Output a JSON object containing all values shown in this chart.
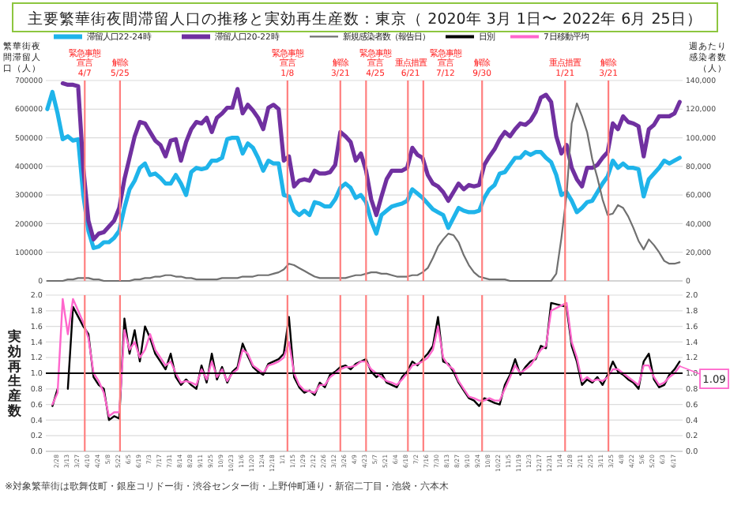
{
  "chart_data": [
    {
      "type": "line",
      "title": "主要繁華街夜間滞留人口の推移と実効再生産数：東京（ 2020年 3月 1日〜 2022年 6月 25日）",
      "ylabel": "繁華街夜間滞留人口（人）",
      "y2label": "週あたり感染者数（人）",
      "legend": "top",
      "grid": "y",
      "tick_labels": "y",
      "xlim": [
        "2020-02-14",
        "2022-06-30"
      ],
      "x": [
        "2020-02-16",
        "2020-02-23",
        "2020-03-01",
        "2020-03-08",
        "2020-03-15",
        "2020-03-22",
        "2020-03-29",
        "2020-04-05",
        "2020-04-12",
        "2020-04-19",
        "2020-04-26",
        "2020-05-03",
        "2020-05-10",
        "2020-05-17",
        "2020-05-24",
        "2020-05-31",
        "2020-06-07",
        "2020-06-14",
        "2020-06-21",
        "2020-06-28",
        "2020-07-05",
        "2020-07-12",
        "2020-07-19",
        "2020-07-26",
        "2020-08-02",
        "2020-08-09",
        "2020-08-16",
        "2020-08-23",
        "2020-08-30",
        "2020-09-06",
        "2020-09-13",
        "2020-09-20",
        "2020-09-27",
        "2020-10-04",
        "2020-10-11",
        "2020-10-18",
        "2020-10-25",
        "2020-11-01",
        "2020-11-08",
        "2020-11-15",
        "2020-11-22",
        "2020-11-29",
        "2020-12-06",
        "2020-12-13",
        "2020-12-20",
        "2020-12-27",
        "2021-01-03",
        "2021-01-10",
        "2021-01-17",
        "2021-01-24",
        "2021-01-31",
        "2021-02-07",
        "2021-02-14",
        "2021-02-21",
        "2021-02-28",
        "2021-03-07",
        "2021-03-14",
        "2021-03-21",
        "2021-03-28",
        "2021-04-04",
        "2021-04-11",
        "2021-04-18",
        "2021-04-25",
        "2021-05-02",
        "2021-05-09",
        "2021-05-16",
        "2021-05-23",
        "2021-05-30",
        "2021-06-06",
        "2021-06-13",
        "2021-06-20",
        "2021-06-27",
        "2021-07-04",
        "2021-07-11",
        "2021-07-18",
        "2021-07-25",
        "2021-08-01",
        "2021-08-08",
        "2021-08-15",
        "2021-08-22",
        "2021-08-29",
        "2021-09-05",
        "2021-09-12",
        "2021-09-19",
        "2021-09-26",
        "2021-10-03",
        "2021-10-10",
        "2021-10-17",
        "2021-10-24",
        "2021-10-31",
        "2021-11-07",
        "2021-11-14",
        "2021-11-21",
        "2021-11-28",
        "2021-12-05",
        "2021-12-12",
        "2021-12-19",
        "2021-12-26",
        "2022-01-02",
        "2022-01-09",
        "2022-01-16",
        "2022-01-23",
        "2022-01-30",
        "2022-02-06",
        "2022-02-13",
        "2022-02-20",
        "2022-02-27",
        "2022-03-06",
        "2022-03-13",
        "2022-03-20",
        "2022-03-27",
        "2022-04-03",
        "2022-04-10",
        "2022-04-17",
        "2022-04-24",
        "2022-05-01",
        "2022-05-08",
        "2022-05-15",
        "2022-05-22",
        "2022-05-29",
        "2022-06-05",
        "2022-06-12",
        "2022-06-19",
        "2022-06-26"
      ],
      "ylim": [
        0,
        700000
      ],
      "yticks": [
        0,
        100000,
        200000,
        300000,
        400000,
        500000,
        600000,
        700000
      ],
      "y2lim": [
        0,
        140000
      ],
      "y2ticks": [
        {
          "value": 0,
          "label": "0"
        },
        {
          "value": 20000,
          "label": "20,000"
        },
        {
          "value": 40000,
          "label": "40,000"
        },
        {
          "value": 60000,
          "label": "60,000"
        },
        {
          "value": 80000,
          "label": "80,000"
        },
        {
          "value": 100000,
          "label": "100,000"
        },
        {
          "value": 120000,
          "label": "120,000"
        },
        {
          "value": 140000,
          "label": "140,000"
        }
      ],
      "series": [
        {
          "name": "滞留人口22-24時",
          "color": "#1fb4ea",
          "values": [
            600000,
            660000,
            585000,
            495000,
            505000,
            490000,
            495000,
            300000,
            175000,
            115000,
            120000,
            135000,
            135000,
            150000,
            175000,
            255000,
            320000,
            350000,
            395000,
            410000,
            370000,
            375000,
            360000,
            340000,
            340000,
            370000,
            340000,
            300000,
            380000,
            395000,
            390000,
            395000,
            420000,
            420000,
            430000,
            495000,
            500000,
            500000,
            445000,
            480000,
            465000,
            430000,
            385000,
            420000,
            410000,
            410000,
            300000,
            295000,
            245000,
            230000,
            245000,
            230000,
            275000,
            270000,
            260000,
            260000,
            285000,
            325000,
            340000,
            325000,
            290000,
            300000,
            275000,
            210000,
            165000,
            230000,
            245000,
            260000,
            265000,
            270000,
            280000,
            320000,
            305000,
            290000,
            270000,
            250000,
            240000,
            230000,
            185000,
            220000,
            255000,
            245000,
            240000,
            240000,
            245000,
            290000,
            320000,
            335000,
            375000,
            380000,
            405000,
            430000,
            430000,
            450000,
            440000,
            450000,
            450000,
            430000,
            415000,
            370000,
            300000,
            310000,
            280000,
            240000,
            255000,
            275000,
            280000,
            310000,
            340000,
            365000,
            420000,
            395000,
            410000,
            395000,
            395000,
            390000,
            295000,
            355000,
            375000,
            395000,
            420000,
            410000,
            420000,
            430000
          ]
        },
        {
          "name": "滞留人口20-22時",
          "color": "#7030a0",
          "values": [
            null,
            null,
            null,
            690000,
            685000,
            685000,
            680000,
            395000,
            210000,
            145000,
            165000,
            170000,
            190000,
            210000,
            255000,
            355000,
            430000,
            505000,
            555000,
            550000,
            520000,
            490000,
            475000,
            435000,
            490000,
            495000,
            420000,
            485000,
            530000,
            555000,
            550000,
            570000,
            520000,
            570000,
            585000,
            605000,
            605000,
            670000,
            585000,
            615000,
            595000,
            570000,
            530000,
            605000,
            615000,
            600000,
            420000,
            435000,
            330000,
            350000,
            355000,
            350000,
            385000,
            375000,
            375000,
            380000,
            405000,
            520000,
            505000,
            485000,
            420000,
            445000,
            385000,
            285000,
            230000,
            295000,
            355000,
            385000,
            385000,
            385000,
            395000,
            465000,
            440000,
            430000,
            370000,
            340000,
            330000,
            310000,
            280000,
            310000,
            340000,
            320000,
            335000,
            330000,
            335000,
            405000,
            435000,
            460000,
            495000,
            520000,
            505000,
            530000,
            550000,
            545000,
            560000,
            590000,
            640000,
            650000,
            625000,
            505000,
            445000,
            475000,
            395000,
            355000,
            330000,
            395000,
            395000,
            405000,
            430000,
            450000,
            550000,
            530000,
            575000,
            555000,
            550000,
            540000,
            435000,
            530000,
            545000,
            575000,
            575000,
            575000,
            585000,
            625000
          ]
        },
        {
          "name": "新規感染者数（報告日）",
          "color": "#707070",
          "axis": "y2",
          "values": [
            0,
            0,
            0,
            0,
            1000,
            1000,
            2000,
            2000,
            2000,
            1000,
            1000,
            0,
            0,
            0,
            0,
            0,
            0,
            1000,
            1000,
            2000,
            2000,
            3000,
            3000,
            4000,
            4000,
            3000,
            3000,
            2000,
            2000,
            1000,
            1000,
            1000,
            1000,
            1000,
            2000,
            2000,
            2000,
            2000,
            3000,
            3000,
            3000,
            4000,
            4000,
            4000,
            5000,
            6000,
            8000,
            12000,
            11000,
            9000,
            7000,
            5000,
            3000,
            2000,
            2000,
            2000,
            2000,
            2000,
            2000,
            3000,
            4000,
            4000,
            5000,
            6000,
            6000,
            5000,
            5000,
            4000,
            3000,
            3000,
            3000,
            4000,
            4000,
            6000,
            9000,
            16000,
            24000,
            29000,
            33000,
            32000,
            27000,
            18000,
            11000,
            6000,
            3000,
            2000,
            1000,
            1000,
            1000,
            1000,
            0,
            0,
            0,
            0,
            0,
            0,
            0,
            0,
            0,
            5000,
            30000,
            60000,
            110000,
            124000,
            115000,
            104000,
            85000,
            72000,
            57000,
            46000,
            47000,
            53000,
            51000,
            45000,
            37000,
            28000,
            22000,
            29000,
            25000,
            20000,
            14000,
            12000,
            12000,
            13000
          ]
        }
      ],
      "ref_lines": [
        {
          "axis": "x",
          "value": "2020-04-07",
          "label": "緊急事態宣言\n4/7",
          "color": "#ff7f7f"
        },
        {
          "axis": "x",
          "value": "2020-05-25",
          "label": "解除\n5/25",
          "color": "#ff7f7f"
        },
        {
          "axis": "x",
          "value": "2021-01-08",
          "label": "緊急事態宣言\n1/8",
          "color": "#ff7f7f"
        },
        {
          "axis": "x",
          "value": "2021-03-21",
          "label": "解除\n3/21",
          "color": "#ff7f7f"
        },
        {
          "axis": "x",
          "value": "2021-04-25",
          "label": "緊急事態宣言\n4/25",
          "color": "#ff7f7f"
        },
        {
          "axis": "x",
          "value": "2021-06-21",
          "label": "重点措置\n6/21",
          "color": "#ff7f7f"
        },
        {
          "axis": "x",
          "value": "2021-07-12",
          "label": "緊急事態宣言\n7/12",
          "color": "#ff7f7f"
        },
        {
          "axis": "x",
          "value": "2021-09-30",
          "label": "解除\n9/30",
          "color": "#ff7f7f"
        },
        {
          "axis": "x",
          "value": "2022-01-21",
          "label": "重点措置\n1/21",
          "color": "#ff7f7f"
        },
        {
          "axis": "x",
          "value": "2022-03-21",
          "label": "解除\n3/21",
          "color": "#ff7f7f"
        }
      ]
    },
    {
      "type": "line",
      "ylabel": "実効再生産数",
      "legend": "top",
      "grid": "y",
      "xlim": [
        "2020-02-14",
        "2022-06-30"
      ],
      "x": [
        "2020-02-23",
        "2020-03-01",
        "2020-03-08",
        "2020-03-15",
        "2020-03-22",
        "2020-04-05",
        "2020-04-12",
        "2020-04-19",
        "2020-04-26",
        "2020-05-03",
        "2020-05-10",
        "2020-05-17",
        "2020-05-24",
        "2020-05-31",
        "2020-06-07",
        "2020-06-14",
        "2020-06-21",
        "2020-06-28",
        "2020-07-05",
        "2020-07-12",
        "2020-07-19",
        "2020-07-26",
        "2020-08-02",
        "2020-08-09",
        "2020-08-16",
        "2020-08-23",
        "2020-08-30",
        "2020-09-06",
        "2020-09-13",
        "2020-09-20",
        "2020-09-27",
        "2020-10-04",
        "2020-10-11",
        "2020-10-18",
        "2020-10-25",
        "2020-11-01",
        "2020-11-08",
        "2020-11-15",
        "2020-11-22",
        "2020-11-29",
        "2020-12-06",
        "2020-12-13",
        "2020-12-20",
        "2020-12-27",
        "2021-01-03",
        "2021-01-10",
        "2021-01-17",
        "2021-01-24",
        "2021-01-31",
        "2021-02-07",
        "2021-02-14",
        "2021-02-21",
        "2021-02-28",
        "2021-03-07",
        "2021-03-14",
        "2021-03-21",
        "2021-03-28",
        "2021-04-04",
        "2021-04-11",
        "2021-04-18",
        "2021-04-25",
        "2021-05-02",
        "2021-05-09",
        "2021-05-16",
        "2021-05-23",
        "2021-05-30",
        "2021-06-06",
        "2021-06-13",
        "2021-06-20",
        "2021-06-27",
        "2021-07-04",
        "2021-07-11",
        "2021-07-18",
        "2021-07-25",
        "2021-08-01",
        "2021-08-08",
        "2021-08-15",
        "2021-08-22",
        "2021-08-29",
        "2021-09-05",
        "2021-09-12",
        "2021-09-19",
        "2021-09-26",
        "2021-10-03",
        "2021-10-10",
        "2021-10-17",
        "2021-10-24",
        "2021-10-31",
        "2021-11-07",
        "2021-11-14",
        "2021-11-21",
        "2021-11-28",
        "2021-12-05",
        "2021-12-12",
        "2021-12-19",
        "2021-12-26",
        "2022-01-02",
        "2022-01-23",
        "2022-01-30",
        "2022-02-06",
        "2022-02-13",
        "2022-02-20",
        "2022-02-27",
        "2022-03-06",
        "2022-03-13",
        "2022-03-20",
        "2022-03-27",
        "2022-04-03",
        "2022-04-10",
        "2022-04-17",
        "2022-04-24",
        "2022-05-01",
        "2022-05-08",
        "2022-05-15",
        "2022-05-22",
        "2022-05-29",
        "2022-06-05",
        "2022-06-12",
        "2022-06-19",
        "2022-06-26"
      ],
      "xticks": [
        {
          "value": "2020-02-28",
          "label": "2/28"
        },
        {
          "value": "2020-03-13",
          "label": "3/13"
        },
        {
          "value": "2020-03-27",
          "label": "3/27"
        },
        {
          "value": "2020-04-10",
          "label": "4/10"
        },
        {
          "value": "2020-04-24",
          "label": "4/24"
        },
        {
          "value": "2020-05-08",
          "label": "5/8"
        },
        {
          "value": "2020-05-22",
          "label": "5/22"
        },
        {
          "value": "2020-06-05",
          "label": "6/5"
        },
        {
          "value": "2020-06-19",
          "label": "6/19"
        },
        {
          "value": "2020-07-03",
          "label": "7/3"
        },
        {
          "value": "2020-07-17",
          "label": "7/17"
        },
        {
          "value": "2020-07-31",
          "label": "7/31"
        },
        {
          "value": "2020-08-14",
          "label": "8/14"
        },
        {
          "value": "2020-08-28",
          "label": "8/28"
        },
        {
          "value": "2020-09-11",
          "label": "9/11"
        },
        {
          "value": "2020-09-25",
          "label": "9/25"
        },
        {
          "value": "2020-10-09",
          "label": "10/9"
        },
        {
          "value": "2020-10-23",
          "label": "10/23"
        },
        {
          "value": "2020-11-06",
          "label": "11/6"
        },
        {
          "value": "2020-11-20",
          "label": "11/20"
        },
        {
          "value": "2020-12-04",
          "label": "12/4"
        },
        {
          "value": "2020-12-18",
          "label": "12/18"
        },
        {
          "value": "2021-01-01",
          "label": "1/1"
        },
        {
          "value": "2021-01-15",
          "label": "1/15"
        },
        {
          "value": "2021-01-29",
          "label": "1/29"
        },
        {
          "value": "2021-02-12",
          "label": "2/12"
        },
        {
          "value": "2021-02-26",
          "label": "2/26"
        },
        {
          "value": "2021-03-12",
          "label": "3/12"
        },
        {
          "value": "2021-03-26",
          "label": "3/26"
        },
        {
          "value": "2021-04-09",
          "label": "4/9"
        },
        {
          "value": "2021-04-23",
          "label": "4/23"
        },
        {
          "value": "2021-05-07",
          "label": "5/7"
        },
        {
          "value": "2021-05-21",
          "label": "5/21"
        },
        {
          "value": "2021-06-04",
          "label": "6/4"
        },
        {
          "value": "2021-06-18",
          "label": "6/18"
        },
        {
          "value": "2021-07-02",
          "label": "7/2"
        },
        {
          "value": "2021-07-16",
          "label": "7/16"
        },
        {
          "value": "2021-07-30",
          "label": "7/30"
        },
        {
          "value": "2021-08-13",
          "label": "8/13"
        },
        {
          "value": "2021-08-27",
          "label": "8/27"
        },
        {
          "value": "2021-09-10",
          "label": "9/10"
        },
        {
          "value": "2021-09-24",
          "label": "9/24"
        },
        {
          "value": "2021-10-08",
          "label": "10/8"
        },
        {
          "value": "2021-10-22",
          "label": "10/22"
        },
        {
          "value": "2021-11-05",
          "label": "11/5"
        },
        {
          "value": "2021-11-19",
          "label": "11/19"
        },
        {
          "value": "2021-12-03",
          "label": "12/3"
        },
        {
          "value": "2021-12-17",
          "label": "12/17"
        },
        {
          "value": "2021-12-31",
          "label": "12/31"
        },
        {
          "value": "2022-01-14",
          "label": "1/14"
        },
        {
          "value": "2022-01-28",
          "label": "1/28"
        },
        {
          "value": "2022-02-11",
          "label": "2/11"
        },
        {
          "value": "2022-02-25",
          "label": "2/25"
        },
        {
          "value": "2022-03-11",
          "label": "3/11"
        },
        {
          "value": "2022-03-25",
          "label": "3/25"
        },
        {
          "value": "2022-04-08",
          "label": "4/8"
        },
        {
          "value": "2022-04-22",
          "label": "4/22"
        },
        {
          "value": "2022-05-06",
          "label": "5/6"
        },
        {
          "value": "2022-05-20",
          "label": "5/20"
        },
        {
          "value": "2022-06-03",
          "label": "6/3"
        },
        {
          "value": "2022-06-17",
          "label": "6/17"
        }
      ],
      "ylim": [
        0,
        2
      ],
      "yticks": [
        {
          "value": 0,
          "label": "0.0"
        },
        {
          "value": 0.2,
          "label": "0.2"
        },
        {
          "value": 0.4,
          "label": "0.4"
        },
        {
          "value": 0.6,
          "label": "0.6"
        },
        {
          "value": 0.8,
          "label": "0.8"
        },
        {
          "value": 1,
          "label": "1.0"
        },
        {
          "value": 1.2,
          "label": "1.2"
        },
        {
          "value": 1.4,
          "label": "1.4"
        },
        {
          "value": 1.6,
          "label": "1.6"
        },
        {
          "value": 1.8,
          "label": "1.8"
        },
        {
          "value": 2,
          "label": "2.0"
        }
      ],
      "y2lim": [
        0,
        2
      ],
      "y2ticks": [
        {
          "value": 0,
          "label": "0.0"
        },
        {
          "value": 0.2,
          "label": "0.2"
        },
        {
          "value": 0.4,
          "label": "0.4"
        },
        {
          "value": 0.6,
          "label": "0.6"
        },
        {
          "value": 0.8,
          "label": "0.8"
        },
        {
          "value": 1,
          "label": "1.0"
        },
        {
          "value": 1.2,
          "label": "1.2"
        },
        {
          "value": 1.4,
          "label": "1.4"
        },
        {
          "value": 1.6,
          "label": "1.6"
        },
        {
          "value": 1.8,
          "label": "1.8"
        },
        {
          "value": 2,
          "label": "2.0"
        }
      ],
      "series": [
        {
          "name": "日別",
          "color": "#000000",
          "values": [
            0.58,
            0.8,
            null,
            0.8,
            1.85,
            1.6,
            1.5,
            0.95,
            0.85,
            0.8,
            0.4,
            0.45,
            0.42,
            1.7,
            1.25,
            1.55,
            1.15,
            1.6,
            1.45,
            1.25,
            1.15,
            1.05,
            1.25,
            0.95,
            0.85,
            0.92,
            0.85,
            0.8,
            1.1,
            0.88,
            1.25,
            0.92,
            1.08,
            0.88,
            1.02,
            1.08,
            1.38,
            1.22,
            1.08,
            1.02,
            0.98,
            1.12,
            1.15,
            1.18,
            1.25,
            1.72,
            0.95,
            0.82,
            0.75,
            0.78,
            0.72,
            0.88,
            0.82,
            0.98,
            1.02,
            1.08,
            1.1,
            1.05,
            1.12,
            1.15,
            1.18,
            1.02,
            0.95,
            1.0,
            0.88,
            0.85,
            0.82,
            0.95,
            1.02,
            1.15,
            1.1,
            1.18,
            1.25,
            1.35,
            1.72,
            1.15,
            1.12,
            1.02,
            0.88,
            0.78,
            0.68,
            0.65,
            0.58,
            0.68,
            0.65,
            0.62,
            0.6,
            0.85,
            0.98,
            1.18,
            0.98,
            1.08,
            1.15,
            1.18,
            1.35,
            1.32,
            1.9,
            1.85,
            1.35,
            1.15,
            0.85,
            0.92,
            0.88,
            0.95,
            0.85,
            0.98,
            1.15,
            1.02,
            0.98,
            0.92,
            0.88,
            0.8,
            1.15,
            1.25,
            0.92,
            0.82,
            0.85,
            0.98,
            1.05,
            1.15
          ]
        },
        {
          "name": "7日移動平均",
          "color": "#ff66cc",
          "values": [
            0.6,
            0.75,
            1.95,
            1.5,
            1.95,
            1.65,
            1.45,
            1.0,
            0.9,
            0.75,
            0.45,
            0.5,
            0.5,
            1.55,
            1.3,
            1.4,
            1.2,
            1.3,
            1.5,
            1.3,
            1.2,
            1.1,
            1.15,
            1.0,
            0.88,
            0.9,
            0.88,
            0.85,
            1.05,
            0.92,
            1.15,
            0.95,
            1.05,
            0.9,
            1.0,
            1.05,
            1.3,
            1.25,
            1.1,
            1.05,
            1.0,
            1.1,
            1.12,
            1.15,
            1.2,
            1.4,
            1.0,
            0.85,
            0.78,
            0.77,
            0.75,
            0.85,
            0.85,
            0.95,
            1.0,
            1.05,
            1.08,
            1.08,
            1.1,
            1.15,
            1.15,
            1.05,
            1.0,
            0.95,
            0.9,
            0.88,
            0.85,
            0.92,
            1.0,
            1.1,
            1.12,
            1.15,
            1.2,
            1.3,
            1.6,
            1.2,
            1.1,
            1.05,
            0.9,
            0.8,
            0.7,
            0.68,
            0.65,
            0.65,
            0.68,
            0.65,
            0.65,
            0.8,
            0.95,
            1.1,
            1.0,
            1.05,
            1.1,
            1.2,
            1.3,
            1.35,
            1.8,
            1.9,
            1.4,
            1.2,
            0.9,
            0.95,
            0.9,
            0.92,
            0.9,
            0.95,
            1.05,
            1.05,
            1.0,
            0.95,
            0.9,
            0.85,
            1.1,
            1.1,
            0.95,
            0.85,
            0.88,
            0.95,
            1.0,
            1.09
          ]
        }
      ],
      "ref_lines": [
        {
          "axis": "y",
          "value": 1,
          "color": "#000000"
        },
        {
          "axis": "x",
          "value": "2020-04-07",
          "color": "#ff7f7f"
        },
        {
          "axis": "x",
          "value": "2020-05-25",
          "color": "#ff7f7f"
        },
        {
          "axis": "x",
          "value": "2021-01-08",
          "color": "#ff7f7f"
        },
        {
          "axis": "x",
          "value": "2021-03-21",
          "color": "#ff7f7f"
        },
        {
          "axis": "x",
          "value": "2021-04-25",
          "color": "#ff7f7f"
        },
        {
          "axis": "x",
          "value": "2021-06-21",
          "color": "#ff7f7f"
        },
        {
          "axis": "x",
          "value": "2021-07-12",
          "color": "#ff7f7f"
        },
        {
          "axis": "x",
          "value": "2021-09-30",
          "color": "#ff7f7f"
        },
        {
          "axis": "x",
          "value": "2022-01-21",
          "color": "#ff7f7f"
        },
        {
          "axis": "x",
          "value": "2022-03-21",
          "color": "#ff7f7f"
        }
      ],
      "annotations": [
        "※対象繁華街は歌舞伎町・銀座コリドー街・渋谷センター街・上野仲町通り・新宿二丁目・池袋・六本木",
        {
          "text": "1.09",
          "x": "2022-06-26",
          "y": 1.09
        }
      ]
    }
  ]
}
